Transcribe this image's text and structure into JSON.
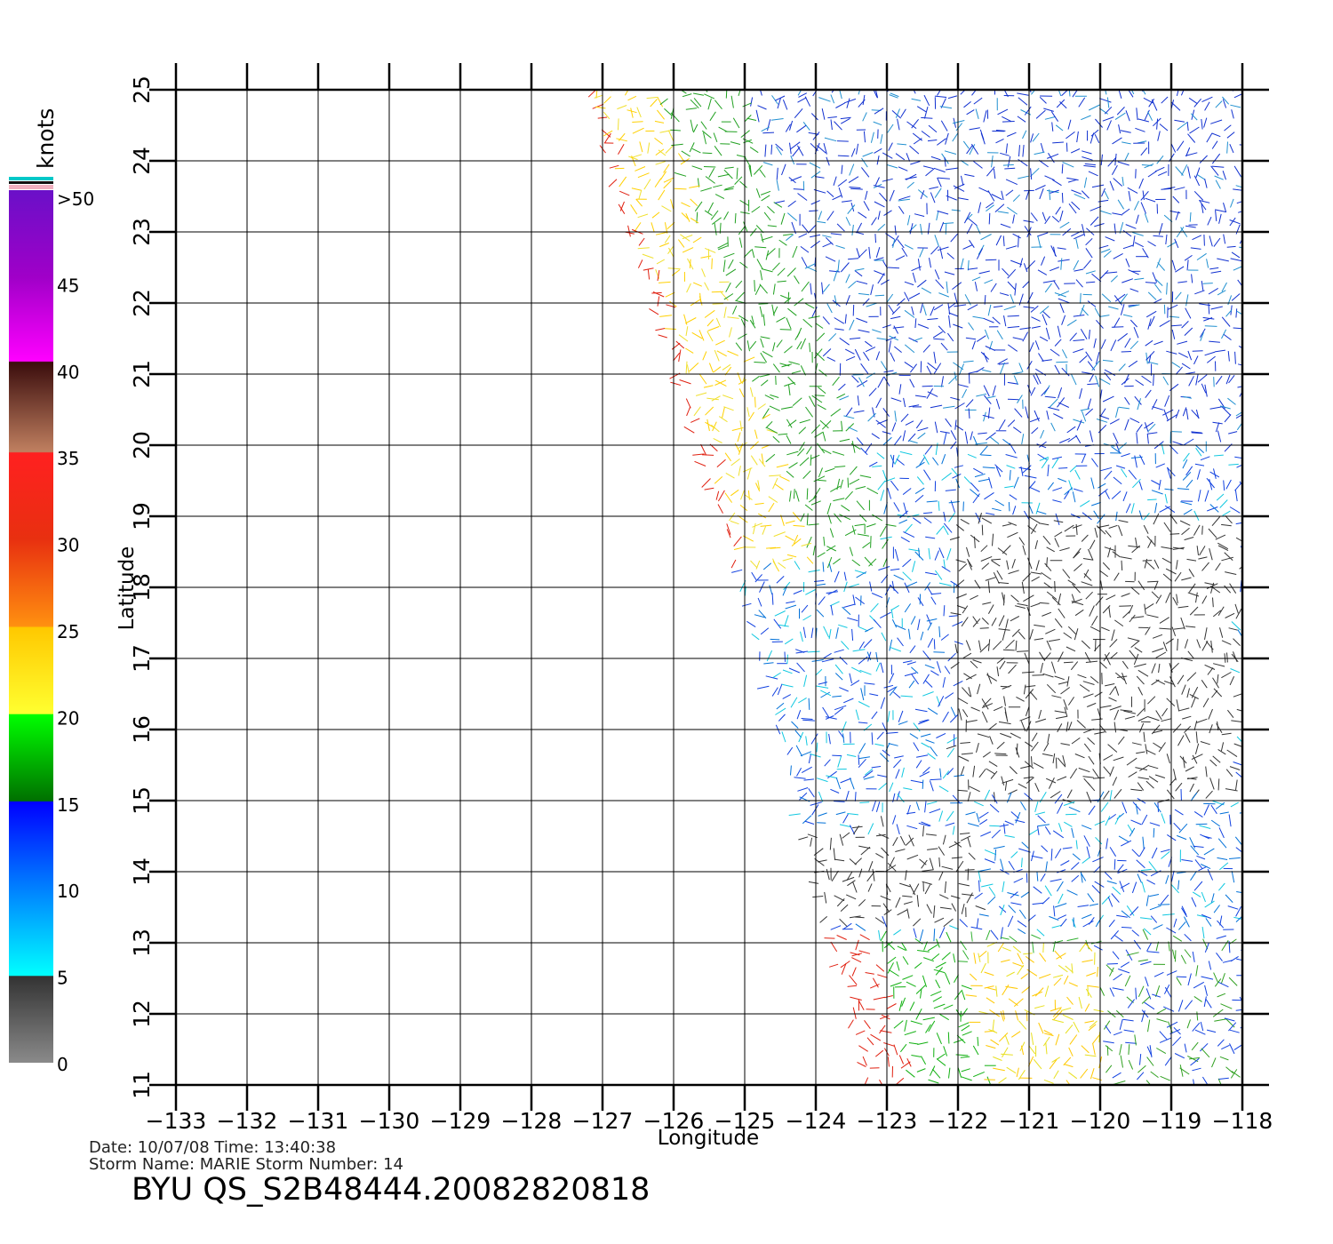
{
  "map": {
    "lon_range": [
      -133,
      -118
    ],
    "lat_range": [
      11,
      25
    ],
    "xlabel": "Longitude",
    "ylabel": "Latitude",
    "lon_ticks": [
      "−133",
      "−132",
      "−131",
      "−130",
      "−129",
      "−128",
      "−127",
      "−126",
      "−125",
      "−124",
      "−123",
      "−122",
      "−121",
      "−120",
      "−119",
      "−118"
    ],
    "lat_ticks": [
      "11",
      "12",
      "13",
      "14",
      "15",
      "16",
      "17",
      "18",
      "19",
      "20",
      "21",
      "22",
      "23",
      "24",
      "25"
    ],
    "grid": true
  },
  "colorbar": {
    "unit": "knots",
    "labels": [
      "0",
      "5",
      "10",
      "15",
      "20",
      "25",
      "30",
      "35",
      "40",
      "45",
      ">50"
    ],
    "gradient_top_to_bottom": [
      "#6e0ec8",
      "#a000c8",
      "#ff00ff",
      "#3a0c0c",
      "#b07050",
      "#ff2020",
      "#e03010",
      "#ff8010",
      "#ffc800",
      "#ffff30",
      "#00ff00",
      "#007000",
      "#0000ff",
      "#0080ff",
      "#00ffff",
      "#333333",
      "#888888"
    ]
  },
  "storm": {
    "date_line": "Date: 10/07/08   Time: 13:40:38",
    "name_line": "Storm  Name:  MARIE    Storm  Number:  14",
    "product_line": "BYU  QS_S2B48444.20082820818"
  }
}
